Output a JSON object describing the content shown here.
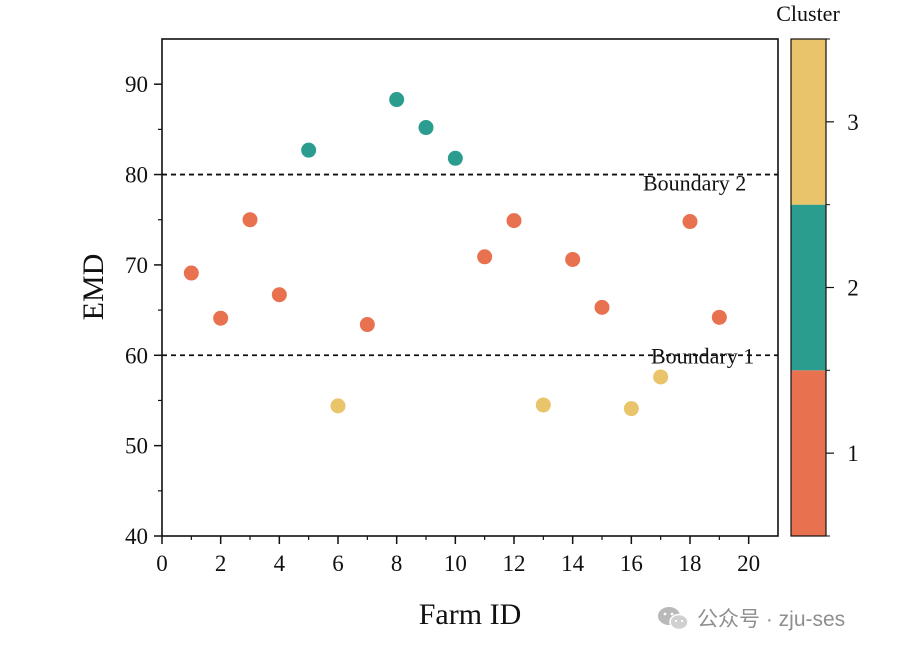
{
  "chart_data": {
    "type": "scatter",
    "xlabel": "Farm ID",
    "ylabel": "EMD",
    "xlim": [
      0,
      21
    ],
    "ylim": [
      40,
      95
    ],
    "x_ticks": [
      0,
      2,
      4,
      6,
      8,
      10,
      12,
      14,
      16,
      18,
      20
    ],
    "y_ticks": [
      40,
      50,
      60,
      70,
      80,
      90
    ],
    "grid": false,
    "points": [
      {
        "x": 1,
        "y": 69.1,
        "cluster": 1
      },
      {
        "x": 2,
        "y": 64.1,
        "cluster": 1
      },
      {
        "x": 3,
        "y": 75.0,
        "cluster": 1
      },
      {
        "x": 4,
        "y": 66.7,
        "cluster": 1
      },
      {
        "x": 5,
        "y": 82.7,
        "cluster": 2
      },
      {
        "x": 6,
        "y": 54.4,
        "cluster": 3
      },
      {
        "x": 7,
        "y": 63.4,
        "cluster": 1
      },
      {
        "x": 8,
        "y": 88.3,
        "cluster": 2
      },
      {
        "x": 9,
        "y": 85.2,
        "cluster": 2
      },
      {
        "x": 10,
        "y": 81.8,
        "cluster": 2
      },
      {
        "x": 11,
        "y": 70.9,
        "cluster": 1
      },
      {
        "x": 12,
        "y": 74.9,
        "cluster": 1
      },
      {
        "x": 13,
        "y": 54.5,
        "cluster": 3
      },
      {
        "x": 14,
        "y": 70.6,
        "cluster": 1
      },
      {
        "x": 15,
        "y": 65.3,
        "cluster": 1
      },
      {
        "x": 16,
        "y": 54.1,
        "cluster": 3
      },
      {
        "x": 17,
        "y": 57.6,
        "cluster": 3
      },
      {
        "x": 18,
        "y": 74.8,
        "cluster": 1
      },
      {
        "x": 19,
        "y": 64.2,
        "cluster": 1
      }
    ],
    "boundaries": [
      {
        "label": "Boundary 1",
        "y": 60
      },
      {
        "label": "Boundary 2",
        "y": 80
      }
    ],
    "colorbar": {
      "title": "Cluster",
      "levels": [
        {
          "label": "1",
          "color": "#E8714F"
        },
        {
          "label": "2",
          "color": "#2A9D8F"
        },
        {
          "label": "3",
          "color": "#E9C46A"
        }
      ]
    }
  },
  "watermark": {
    "icon": "wechat-icon",
    "text": "公众号 · zju-ses"
  }
}
